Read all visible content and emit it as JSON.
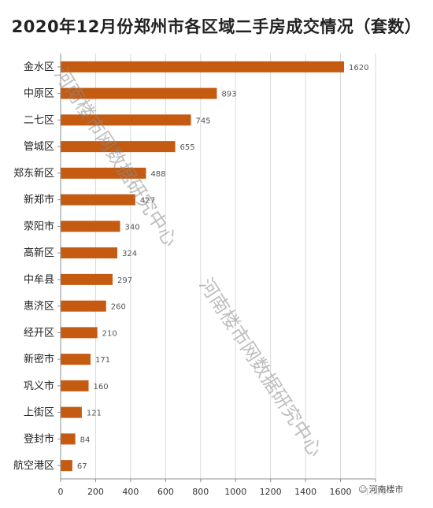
{
  "title": "2020年12月份郑州市各区域二手房成交情况（套数）",
  "watermark": "河南楼市网数据研究中心",
  "brand_text": "河南楼市",
  "brand_icon": "wechat-icon",
  "colors": {
    "bar": "#C55A11",
    "axis": "#8C8C8C",
    "grid": "#D9D9D9"
  },
  "chart_data": {
    "type": "bar",
    "orientation": "horizontal",
    "title": "2020年12月份郑州市各区域二手房成交情况（套数）",
    "categories": [
      "金水区",
      "中原区",
      "二七区",
      "管城区",
      "郑东新区",
      "新郑市",
      "荥阳市",
      "高新区",
      "中牟县",
      "惠济区",
      "经开区",
      "新密市",
      "巩义市",
      "上街区",
      "登封市",
      "航空港区"
    ],
    "values": [
      1620,
      893,
      745,
      655,
      488,
      427,
      340,
      324,
      297,
      260,
      210,
      171,
      160,
      121,
      84,
      67
    ],
    "value_labels": [
      "1620",
      "893",
      "745",
      "655",
      "488",
      "427",
      "340",
      "324",
      "297",
      "260",
      "210",
      "171",
      "160",
      "121",
      "84",
      "67"
    ],
    "xlim": [
      0,
      1800
    ],
    "xticks": [
      "0",
      "200",
      "400",
      "600",
      "800",
      "1000",
      "1200",
      "1400",
      "1600",
      "1800"
    ],
    "xlabel": "",
    "ylabel": "",
    "grid": "vertical",
    "legend": "none"
  }
}
